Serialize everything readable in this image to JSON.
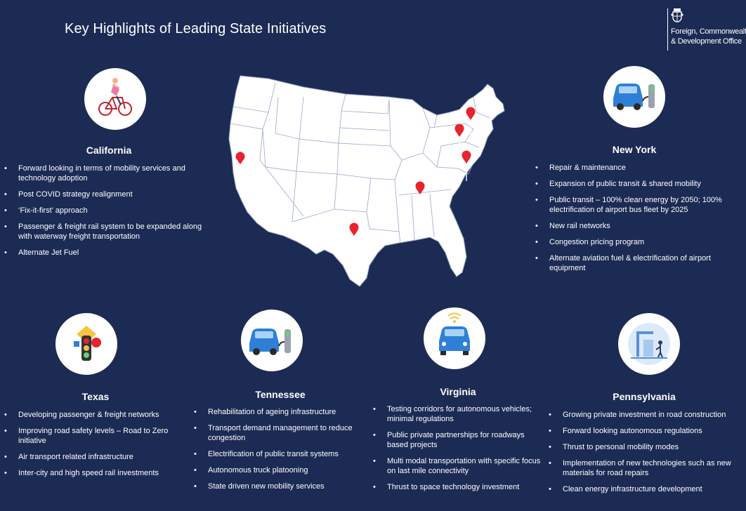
{
  "header": {
    "title": "Key Highlights of Leading State Initiatives",
    "logo_line1": "Foreign, Commonwealth",
    "logo_line2": "& Development Office"
  },
  "colors": {
    "background": "#1c2b54",
    "pin": "#e8232d",
    "map_fill": "#ffffff",
    "map_border": "#9aa7c7",
    "car": "#2f7fd6"
  },
  "states": {
    "california": {
      "name": "California",
      "icon": "cyclist-icon",
      "items": [
        "Forward looking in terms of mobility services and technology adoption",
        "Post COVID strategy realignment",
        "‘Fix-it-first’ approach",
        "Passenger & freight rail system to be expanded along with waterway freight transportation",
        "Alternate Jet Fuel"
      ]
    },
    "new_york": {
      "name": "New York",
      "icon": "ev-charging-car-icon",
      "items": [
        "Repair & maintenance",
        "Expansion of public transit & shared mobility",
        "Public transit – 100% clean energy by 2050; 100% electrification of airport bus fleet by 2025",
        "New rail networks",
        "Congestion pricing program",
        "Alternate aviation fuel & electrification of airport equipment"
      ]
    },
    "texas": {
      "name": "Texas",
      "icon": "traffic-light-icon",
      "items": [
        "Developing passenger & freight networks",
        "Improving road safety levels – Road to Zero initiative",
        "Air transport related infrastructure",
        "Inter-city and high speed rail investments"
      ]
    },
    "tennessee": {
      "name": "Tennessee",
      "icon": "ev-charging-car-icon",
      "items": [
        "Rehabilitation of ageing infrastructure",
        "Transport demand management to reduce congestion",
        "Electrification of public transit systems",
        "Autonomous truck platooning",
        "State driven new mobility services"
      ]
    },
    "virginia": {
      "name": "Virginia",
      "icon": "connected-car-icon",
      "items": [
        "Testing corridors for autonomous vehicles; minimal regulations",
        "Public private partnerships for roadways based projects",
        "Multi modal transportation with specific focus on last mile connectivity",
        "Thrust to space technology investment"
      ]
    },
    "pennsylvania": {
      "name": "Pennsylvania",
      "icon": "road-construction-icon",
      "items": [
        "Growing private investment in road construction",
        "Forward looking autonomous regulations",
        "Thrust to personal mobility modes",
        "Implementation  of new technologies such as new materials for road repairs",
        "Clean energy infrastructure development"
      ]
    }
  }
}
